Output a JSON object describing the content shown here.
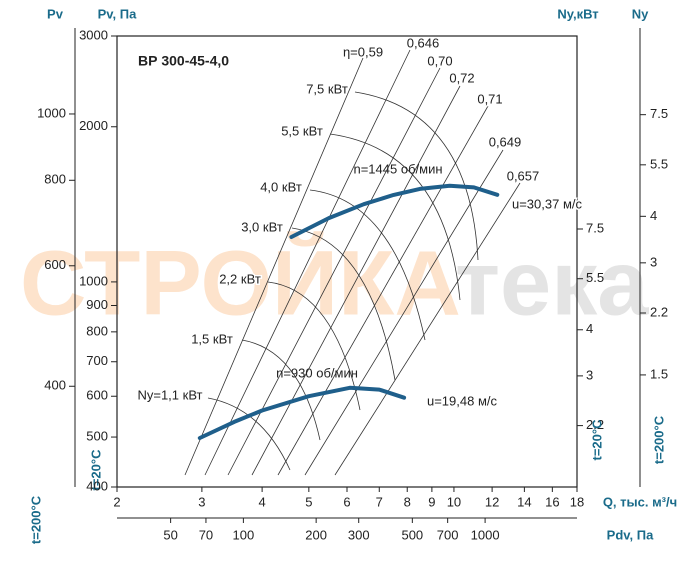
{
  "chart_data": {
    "type": "line",
    "title": "ВР 300-45-4,0",
    "x_label": "Q, тыс. м³/ч",
    "y_label": "Pv, Па",
    "y_temperature": "t=20°C",
    "log_x": true,
    "log_y": true,
    "xlim": [
      2,
      18
    ],
    "xticks": [
      2,
      3,
      4,
      5,
      6,
      7,
      8,
      9,
      10,
      12,
      14,
      16,
      18
    ],
    "ylim": [
      400,
      3000
    ],
    "yticks": [
      400,
      500,
      600,
      700,
      800,
      900,
      1000,
      2000,
      3000
    ],
    "series": [
      {
        "name": "n=1445 об/мин",
        "color": "#1f5f8b",
        "x": [
          4.6,
          5.5,
          6.5,
          7.5,
          8.5,
          9.8,
          11,
          12.3
        ],
        "values": [
          1222,
          1330,
          1415,
          1475,
          1515,
          1536,
          1525,
          1476
        ]
      },
      {
        "name": "n=930 об/мин",
        "color": "#1f5f8b",
        "x": [
          2.97,
          3.5,
          4,
          5,
          6.08,
          7,
          7.88
        ],
        "values": [
          498,
          535,
          563,
          600,
          623,
          618,
          596
        ]
      }
    ],
    "annotations": [
      "η=0,59",
      "0,646",
      "0,70",
      "0,72",
      "0,71",
      "0,649",
      "0,657",
      "7,5 кВт",
      "5,5 кВт",
      "4,0 кВт",
      "3,0 кВт",
      "2,2 кВт",
      "1,5 кВт",
      "Ny=1,1 кВт",
      "u=30,37 м/с",
      "u=19,48 м/с"
    ],
    "watermark": [
      "СТРОЙКА",
      "тека"
    ],
    "pv_t200_axis": {
      "label": "Pv",
      "temperature": "t=200°C",
      "ylim": [
        285,
        1300
      ],
      "yticks": [
        400,
        600,
        800,
        1000
      ]
    },
    "ny_t20_axis": {
      "label": "Ny,кВт",
      "temperature": "t=20°C",
      "ylim": [
        1.5,
        25
      ],
      "yticks": [
        2.2,
        3.0,
        4.0,
        5.5,
        7.5
      ]
    },
    "ny_t200_axis": {
      "label": "Ny",
      "temperature": "t=200°C",
      "ylim": [
        0.75,
        12.2
      ],
      "yticks": [
        1.5,
        2.2,
        3.0,
        4.0,
        5.5,
        7.5
      ]
    },
    "pdv_axis": {
      "label": "Pdv, Па",
      "xlim": [
        30,
        2400
      ],
      "xticks": [
        50,
        70,
        100,
        200,
        300,
        500,
        700,
        1000
      ]
    }
  }
}
